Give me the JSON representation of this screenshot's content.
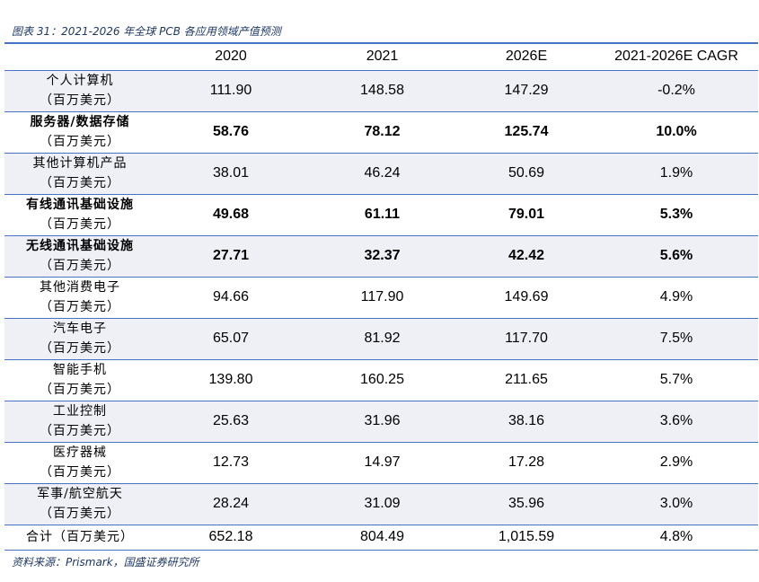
{
  "caption": "图表 31：2021-2026 年全球 PCB 各应用领域产值预测",
  "header": [
    "",
    "2020",
    "2021",
    "2026E",
    "2021-2026E CAGR"
  ],
  "rows": [
    {
      "name": "个人计算机",
      "unit": "（百万美元）",
      "v2020": "111.90",
      "v2021": "148.58",
      "v2026": "147.29",
      "cagr": "-0.2%"
    },
    {
      "name": "服务器/数据存储",
      "unit": "（百万美元）",
      "v2020": "58.76",
      "v2021": "78.12",
      "v2026": "125.74",
      "cagr": "10.0%"
    },
    {
      "name": "其他计算机产品",
      "unit": "（百万美元）",
      "v2020": "38.01",
      "v2021": "46.24",
      "v2026": "50.69",
      "cagr": "1.9%"
    },
    {
      "name": "有线通讯基础设施",
      "unit": "（百万美元）",
      "v2020": "49.68",
      "v2021": "61.11",
      "v2026": "79.01",
      "cagr": "5.3%"
    },
    {
      "name": "无线通讯基础设施",
      "unit": "（百万美元）",
      "v2020": "27.71",
      "v2021": "32.37",
      "v2026": "42.42",
      "cagr": "5.6%"
    },
    {
      "name": "其他消费电子",
      "unit": "（百万美元）",
      "v2020": "94.66",
      "v2021": "117.90",
      "v2026": "149.69",
      "cagr": "4.9%"
    },
    {
      "name": "汽车电子",
      "unit": "（百万美元）",
      "v2020": "65.07",
      "v2021": "81.92",
      "v2026": "117.70",
      "cagr": "7.5%"
    },
    {
      "name": "智能手机",
      "unit": "（百万美元）",
      "v2020": "139.80",
      "v2021": "160.25",
      "v2026": "211.65",
      "cagr": "5.7%"
    },
    {
      "name": "工业控制",
      "unit": "（百万美元）",
      "v2020": "25.63",
      "v2021": "31.96",
      "v2026": "38.16",
      "cagr": "3.6%"
    },
    {
      "name": "医疗器械",
      "unit": "（百万美元）",
      "v2020": "12.73",
      "v2021": "14.97",
      "v2026": "17.28",
      "cagr": "2.9%"
    },
    {
      "name": "军事/航空航天",
      "unit": "（百万美元）",
      "v2020": "28.24",
      "v2021": "31.09",
      "v2026": "35.96",
      "cagr": "3.0%"
    }
  ],
  "total": {
    "label": "合计（百万美元）",
    "v2020": "652.18",
    "v2021": "804.49",
    "v2026": "1,015.59",
    "cagr": "4.8%"
  },
  "source": "资料来源：Prismark，国盛证券研究所",
  "colors": {
    "accent": "#4472c4",
    "alt_row": "#eef0f6",
    "caption_text": "#1f3864"
  }
}
